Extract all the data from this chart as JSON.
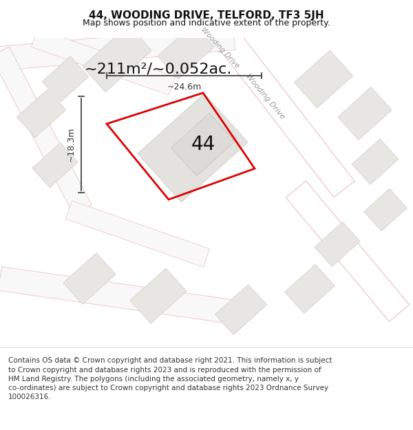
{
  "title": "44, WOODING DRIVE, TELFORD, TF3 5JH",
  "subtitle": "Map shows position and indicative extent of the property.",
  "area_text": "~211m²/~0.052ac.",
  "label_44": "44",
  "dim_width": "~24.6m",
  "dim_height": "~18.3m",
  "road_label": "Wooding Drive",
  "footer": "Contains OS data © Crown copyright and database right 2021. This information is subject\nto Crown copyright and database rights 2023 and is reproduced with the permission of\nHM Land Registry. The polygons (including the associated geometry, namely x, y\nco-ordinates) are subject to Crown copyright and database rights 2023 Ordnance Survey\n100026316.",
  "bg_color": "#f5f4f2",
  "map_bg": "#f8f7f5",
  "road_fill": "#ffffff",
  "road_line_color": "#e8c8c8",
  "building_fill": "#e8e6e2",
  "building_edge": "#cccccc",
  "property_color": "#dd0000",
  "dim_color": "#333333",
  "text_color": "#111111",
  "road_label_color": "#888888",
  "title_fontsize": 11,
  "subtitle_fontsize": 9,
  "area_fontsize": 16,
  "label_fontsize": 20,
  "dim_fontsize": 9,
  "footer_fontsize": 7.5
}
